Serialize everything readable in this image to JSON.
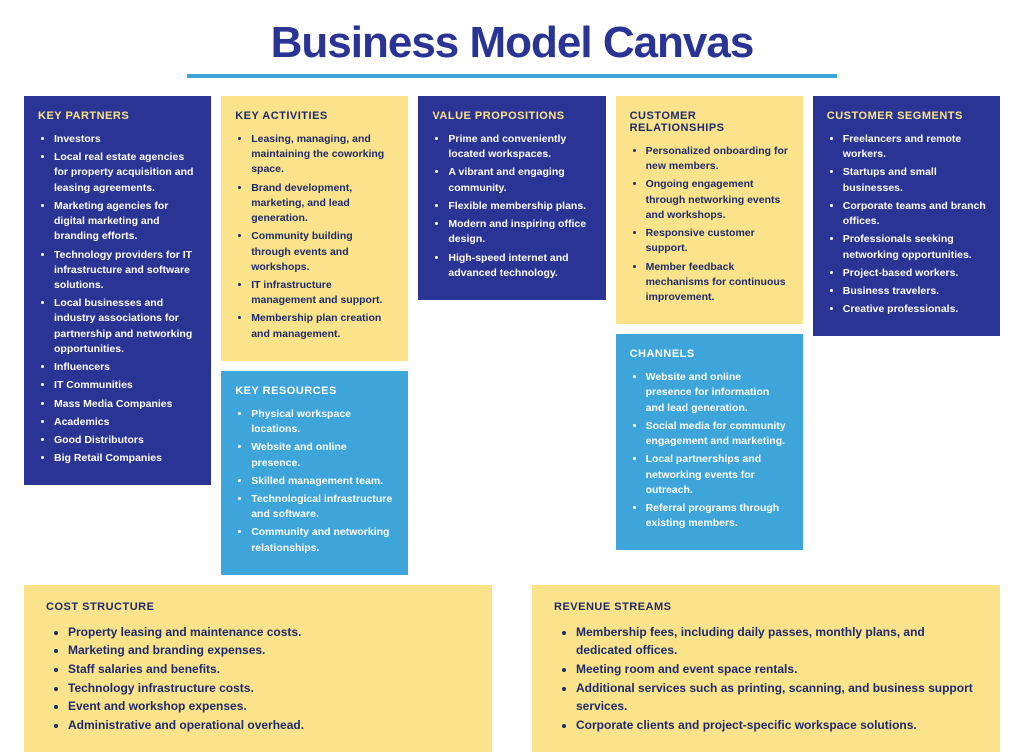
{
  "colors": {
    "navy": "#2a3494",
    "yellow": "#fae38a",
    "blue": "#3da5d9",
    "title": "#2a3494",
    "underline": "#3da5d9",
    "text_on_navy": "#ffffff",
    "text_on_yellow": "#1f2a6b",
    "text_on_blue": "#ffffff",
    "title_on_yellow": "#1f2a6b",
    "title_on_navy": "#fae38a"
  },
  "title": "Business Model Canvas",
  "blocks": {
    "keyPartners": {
      "title": "KEY PARTNERS",
      "bg": "navy",
      "items": [
        "Investors",
        "Local real estate agencies for property acquisition and leasing agreements.",
        "Marketing agencies for digital marketing and branding efforts.",
        "Technology providers for IT infrastructure and software solutions.",
        "Local businesses and industry associations for partnership and networking opportunities.",
        "Influencers",
        "IT Communities",
        "Mass Media Companies",
        "Academics",
        "Good Distributors",
        "Big Retail Companies"
      ]
    },
    "keyActivities": {
      "title": "KEY ACTIVITIES",
      "bg": "yellow",
      "items": [
        "Leasing, managing, and maintaining the coworking space.",
        "Brand development, marketing, and lead generation.",
        "Community building through events and workshops.",
        "IT infrastructure management and support.",
        "Membership plan creation and management."
      ]
    },
    "keyResources": {
      "title": "KEY RESOURCES",
      "bg": "blue",
      "items": [
        "Physical workspace locations.",
        "Website and online presence.",
        "Skilled management team.",
        "Technological infrastructure and software.",
        "Community and networking relationships."
      ]
    },
    "valuePropositions": {
      "title": "VALUE PROPOSITIONS",
      "bg": "navy",
      "items": [
        "Prime and conveniently located workspaces.",
        "A vibrant and engaging community.",
        "Flexible membership plans.",
        "Modern and inspiring office design.",
        "High-speed internet and advanced technology."
      ]
    },
    "customerRelationships": {
      "title": "CUSTOMER RELATIONSHIPS",
      "bg": "yellow",
      "items": [
        "Personalized onboarding for new members.",
        "Ongoing engagement through networking events and workshops.",
        "Responsive customer support.",
        "Member feedback mechanisms for continuous improvement."
      ]
    },
    "channels": {
      "title": "CHANNELS",
      "bg": "blue",
      "items": [
        "Website and online presence for information and lead generation.",
        "Social media for community engagement and marketing.",
        "Local partnerships and networking events for outreach.",
        "Referral programs through existing members."
      ]
    },
    "customerSegments": {
      "title": "CUSTOMER SEGMENTS",
      "bg": "navy",
      "items": [
        "Freelancers and remote workers.",
        "Startups and small businesses.",
        "Corporate teams and branch offices.",
        "Professionals seeking networking opportunities.",
        "Project-based workers.",
        "Business travelers.",
        "Creative professionals."
      ]
    },
    "costStructure": {
      "title": "COST STRUCTURE",
      "bg": "yellow",
      "items": [
        "Property leasing and maintenance costs.",
        "Marketing and branding expenses.",
        "Staff salaries and benefits.",
        "Technology infrastructure costs.",
        "Event and workshop expenses.",
        "Administrative and operational overhead."
      ]
    },
    "revenueStreams": {
      "title": "REVENUE STREAMS",
      "bg": "yellow",
      "items": [
        "Membership fees, including daily passes, monthly plans, and dedicated offices.",
        "Meeting room and event space rentals.",
        "Additional services such as printing, scanning, and business support services.",
        "Corporate clients and project-specific workspace solutions."
      ]
    }
  }
}
